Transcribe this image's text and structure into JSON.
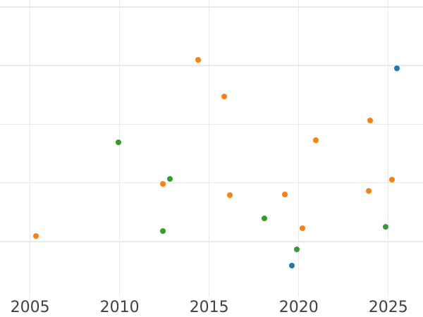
{
  "chart_data": {
    "type": "scatter",
    "title": "",
    "xlabel": "",
    "ylabel": "",
    "x_tick_values": [
      2005,
      2010,
      2015,
      2020,
      2025
    ],
    "x_tick_labels": [
      "2005",
      "2010",
      "2015",
      "2020",
      "2025"
    ],
    "y_tick_labels": [],
    "y_gridline_values": [
      1,
      2,
      3,
      4,
      5
    ],
    "xlim": [
      2003.32,
      2026.94
    ],
    "ylim": [
      0.05,
      5.12
    ],
    "grid": true,
    "legend_position": "none",
    "marker_diameter_px": 8,
    "series": [
      {
        "name": "blue",
        "color": "#1f77b4",
        "points": [
          {
            "x": 2019.63,
            "y": 0.59
          },
          {
            "x": 2025.47,
            "y": 3.95
          }
        ]
      },
      {
        "name": "orange",
        "color": "#ff7f0e",
        "points": [
          {
            "x": 2005.31,
            "y": 1.09
          },
          {
            "x": 2012.4,
            "y": 1.99
          },
          {
            "x": 2014.39,
            "y": 4.1
          },
          {
            "x": 2015.84,
            "y": 3.48
          },
          {
            "x": 2016.15,
            "y": 1.79
          },
          {
            "x": 2019.24,
            "y": 1.8
          },
          {
            "x": 2020.22,
            "y": 1.23
          },
          {
            "x": 2020.97,
            "y": 2.73
          },
          {
            "x": 2023.9,
            "y": 1.87
          },
          {
            "x": 2023.98,
            "y": 3.07
          },
          {
            "x": 2025.21,
            "y": 2.06
          }
        ]
      },
      {
        "name": "green",
        "color": "#2ca02c",
        "points": [
          {
            "x": 2009.94,
            "y": 2.69
          },
          {
            "x": 2012.4,
            "y": 1.18
          },
          {
            "x": 2012.82,
            "y": 2.07
          },
          {
            "x": 2018.07,
            "y": 1.39
          },
          {
            "x": 2019.88,
            "y": 0.87
          },
          {
            "x": 2024.84,
            "y": 1.25
          }
        ]
      }
    ]
  },
  "colors": {
    "background": "#ffffff",
    "gridline": "#e9e9e9",
    "tick_label": "#424242"
  }
}
